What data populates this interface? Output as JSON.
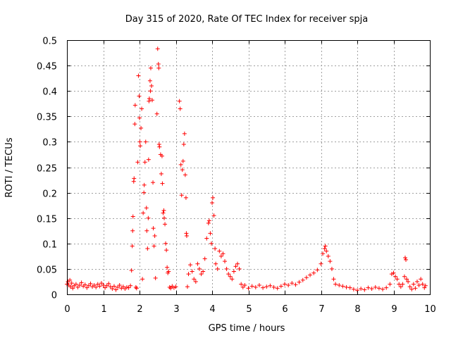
{
  "chart_data": {
    "type": "scatter",
    "title": "Day 315 of 2020, Rate Of TEC Index for receiver spja",
    "xlabel": "GPS time / hours",
    "ylabel": "ROTI / TECUs",
    "xlim": [
      0,
      10
    ],
    "ylim": [
      0,
      0.5
    ],
    "xticks": [
      "0",
      "1",
      "2",
      "3",
      "4",
      "5",
      "6",
      "7",
      "8",
      "9",
      "10"
    ],
    "yticks": [
      "0",
      "0.05",
      "0.1",
      "0.15",
      "0.2",
      "0.25",
      "0.3",
      "0.35",
      "0.4",
      "0.45",
      "0.5"
    ],
    "grid": true,
    "marker": "+",
    "color": "#ff0000",
    "series": [
      {
        "name": "ROTI",
        "points": [
          [
            0.0,
            0.02
          ],
          [
            0.03,
            0.025
          ],
          [
            0.05,
            0.018
          ],
          [
            0.08,
            0.028
          ],
          [
            0.1,
            0.015
          ],
          [
            0.13,
            0.022
          ],
          [
            0.16,
            0.012
          ],
          [
            0.2,
            0.017
          ],
          [
            0.25,
            0.02
          ],
          [
            0.3,
            0.014
          ],
          [
            0.35,
            0.018
          ],
          [
            0.4,
            0.023
          ],
          [
            0.45,
            0.016
          ],
          [
            0.5,
            0.019
          ],
          [
            0.55,
            0.013
          ],
          [
            0.6,
            0.017
          ],
          [
            0.65,
            0.021
          ],
          [
            0.7,
            0.015
          ],
          [
            0.75,
            0.018
          ],
          [
            0.8,
            0.014
          ],
          [
            0.85,
            0.02
          ],
          [
            0.9,
            0.016
          ],
          [
            0.95,
            0.022
          ],
          [
            1.0,
            0.018
          ],
          [
            1.05,
            0.013
          ],
          [
            1.1,
            0.017
          ],
          [
            1.15,
            0.021
          ],
          [
            1.2,
            0.015
          ],
          [
            1.25,
            0.011
          ],
          [
            1.3,
            0.016
          ],
          [
            1.35,
            0.009
          ],
          [
            1.4,
            0.014
          ],
          [
            1.45,
            0.018
          ],
          [
            1.5,
            0.012
          ],
          [
            1.55,
            0.015
          ],
          [
            1.6,
            0.011
          ],
          [
            1.65,
            0.014
          ],
          [
            1.7,
            0.013
          ],
          [
            1.75,
            0.017
          ],
          [
            1.78,
            0.047
          ],
          [
            1.8,
            0.095
          ],
          [
            1.81,
            0.125
          ],
          [
            1.82,
            0.153
          ],
          [
            1.84,
            0.222
          ],
          [
            1.85,
            0.228
          ],
          [
            1.87,
            0.335
          ],
          [
            1.88,
            0.372
          ],
          [
            1.9,
            0.014
          ],
          [
            1.92,
            0.012
          ],
          [
            1.95,
            0.26
          ],
          [
            1.97,
            0.43
          ],
          [
            1.99,
            0.39
          ],
          [
            2.0,
            0.347
          ],
          [
            2.01,
            0.3
          ],
          [
            2.02,
            0.292
          ],
          [
            2.04,
            0.327
          ],
          [
            2.06,
            0.365
          ],
          [
            2.08,
            0.03
          ],
          [
            2.1,
            0.16
          ],
          [
            2.12,
            0.2
          ],
          [
            2.13,
            0.215
          ],
          [
            2.15,
            0.26
          ],
          [
            2.17,
            0.3
          ],
          [
            2.19,
            0.17
          ],
          [
            2.2,
            0.125
          ],
          [
            2.22,
            0.09
          ],
          [
            2.24,
            0.15
          ],
          [
            2.25,
            0.265
          ],
          [
            2.26,
            0.38
          ],
          [
            2.27,
            0.385
          ],
          [
            2.29,
            0.42
          ],
          [
            2.3,
            0.4
          ],
          [
            2.31,
            0.445
          ],
          [
            2.33,
            0.41
          ],
          [
            2.35,
            0.382
          ],
          [
            2.37,
            0.22
          ],
          [
            2.38,
            0.13
          ],
          [
            2.4,
            0.095
          ],
          [
            2.42,
            0.115
          ],
          [
            2.44,
            0.032
          ],
          [
            2.48,
            0.355
          ],
          [
            2.5,
            0.483
          ],
          [
            2.52,
            0.453
          ],
          [
            2.53,
            0.445
          ],
          [
            2.54,
            0.295
          ],
          [
            2.55,
            0.29
          ],
          [
            2.58,
            0.275
          ],
          [
            2.6,
            0.237
          ],
          [
            2.62,
            0.272
          ],
          [
            2.63,
            0.218
          ],
          [
            2.65,
            0.16
          ],
          [
            2.67,
            0.165
          ],
          [
            2.68,
            0.15
          ],
          [
            2.7,
            0.138
          ],
          [
            2.72,
            0.1
          ],
          [
            2.74,
            0.087
          ],
          [
            2.76,
            0.053
          ],
          [
            2.78,
            0.042
          ],
          [
            2.8,
            0.045
          ],
          [
            2.83,
            0.014
          ],
          [
            2.86,
            0.012
          ],
          [
            2.9,
            0.016
          ],
          [
            2.95,
            0.013
          ],
          [
            3.0,
            0.015
          ],
          [
            3.1,
            0.38
          ],
          [
            3.12,
            0.365
          ],
          [
            3.14,
            0.255
          ],
          [
            3.16,
            0.195
          ],
          [
            3.18,
            0.245
          ],
          [
            3.2,
            0.262
          ],
          [
            3.22,
            0.295
          ],
          [
            3.24,
            0.316
          ],
          [
            3.26,
            0.235
          ],
          [
            3.28,
            0.19
          ],
          [
            3.29,
            0.12
          ],
          [
            3.3,
            0.115
          ],
          [
            3.32,
            0.015
          ],
          [
            3.35,
            0.04
          ],
          [
            3.4,
            0.058
          ],
          [
            3.45,
            0.045
          ],
          [
            3.5,
            0.03
          ],
          [
            3.55,
            0.025
          ],
          [
            3.6,
            0.06
          ],
          [
            3.65,
            0.05
          ],
          [
            3.7,
            0.04
          ],
          [
            3.75,
            0.045
          ],
          [
            3.8,
            0.07
          ],
          [
            3.85,
            0.11
          ],
          [
            3.9,
            0.14
          ],
          [
            3.92,
            0.145
          ],
          [
            3.95,
            0.12
          ],
          [
            3.98,
            0.1
          ],
          [
            4.0,
            0.18
          ],
          [
            4.02,
            0.19
          ],
          [
            4.05,
            0.155
          ],
          [
            4.08,
            0.09
          ],
          [
            4.1,
            0.06
          ],
          [
            4.15,
            0.05
          ],
          [
            4.2,
            0.085
          ],
          [
            4.25,
            0.075
          ],
          [
            4.3,
            0.08
          ],
          [
            4.35,
            0.065
          ],
          [
            4.4,
            0.05
          ],
          [
            4.45,
            0.04
          ],
          [
            4.5,
            0.035
          ],
          [
            4.55,
            0.03
          ],
          [
            4.6,
            0.045
          ],
          [
            4.65,
            0.055
          ],
          [
            4.7,
            0.06
          ],
          [
            4.75,
            0.05
          ],
          [
            4.8,
            0.02
          ],
          [
            4.85,
            0.014
          ],
          [
            4.9,
            0.018
          ],
          [
            5.0,
            0.012
          ],
          [
            5.1,
            0.016
          ],
          [
            5.2,
            0.014
          ],
          [
            5.3,
            0.018
          ],
          [
            5.4,
            0.013
          ],
          [
            5.5,
            0.015
          ],
          [
            5.6,
            0.017
          ],
          [
            5.7,
            0.014
          ],
          [
            5.8,
            0.012
          ],
          [
            5.9,
            0.016
          ],
          [
            6.0,
            0.02
          ],
          [
            6.1,
            0.018
          ],
          [
            6.2,
            0.022
          ],
          [
            6.3,
            0.019
          ],
          [
            6.4,
            0.024
          ],
          [
            6.5,
            0.028
          ],
          [
            6.6,
            0.033
          ],
          [
            6.7,
            0.038
          ],
          [
            6.8,
            0.042
          ],
          [
            6.9,
            0.048
          ],
          [
            7.0,
            0.06
          ],
          [
            7.05,
            0.08
          ],
          [
            7.1,
            0.09
          ],
          [
            7.12,
            0.095
          ],
          [
            7.15,
            0.085
          ],
          [
            7.2,
            0.075
          ],
          [
            7.25,
            0.065
          ],
          [
            7.3,
            0.05
          ],
          [
            7.35,
            0.03
          ],
          [
            7.4,
            0.02
          ],
          [
            7.5,
            0.018
          ],
          [
            7.6,
            0.016
          ],
          [
            7.7,
            0.014
          ],
          [
            7.8,
            0.013
          ],
          [
            7.9,
            0.01
          ],
          [
            8.0,
            0.008
          ],
          [
            8.1,
            0.011
          ],
          [
            8.2,
            0.009
          ],
          [
            8.3,
            0.013
          ],
          [
            8.4,
            0.011
          ],
          [
            8.5,
            0.014
          ],
          [
            8.6,
            0.012
          ],
          [
            8.7,
            0.01
          ],
          [
            8.8,
            0.013
          ],
          [
            8.9,
            0.02
          ],
          [
            8.95,
            0.04
          ],
          [
            9.0,
            0.042
          ],
          [
            9.05,
            0.035
          ],
          [
            9.1,
            0.03
          ],
          [
            9.15,
            0.02
          ],
          [
            9.2,
            0.015
          ],
          [
            9.25,
            0.02
          ],
          [
            9.3,
            0.035
          ],
          [
            9.32,
            0.072
          ],
          [
            9.34,
            0.068
          ],
          [
            9.36,
            0.03
          ],
          [
            9.4,
            0.025
          ],
          [
            9.45,
            0.015
          ],
          [
            9.5,
            0.01
          ],
          [
            9.55,
            0.02
          ],
          [
            9.6,
            0.012
          ],
          [
            9.65,
            0.025
          ],
          [
            9.7,
            0.018
          ],
          [
            9.75,
            0.03
          ],
          [
            9.8,
            0.02
          ],
          [
            9.85,
            0.013
          ],
          [
            9.88,
            0.017
          ]
        ]
      }
    ]
  }
}
